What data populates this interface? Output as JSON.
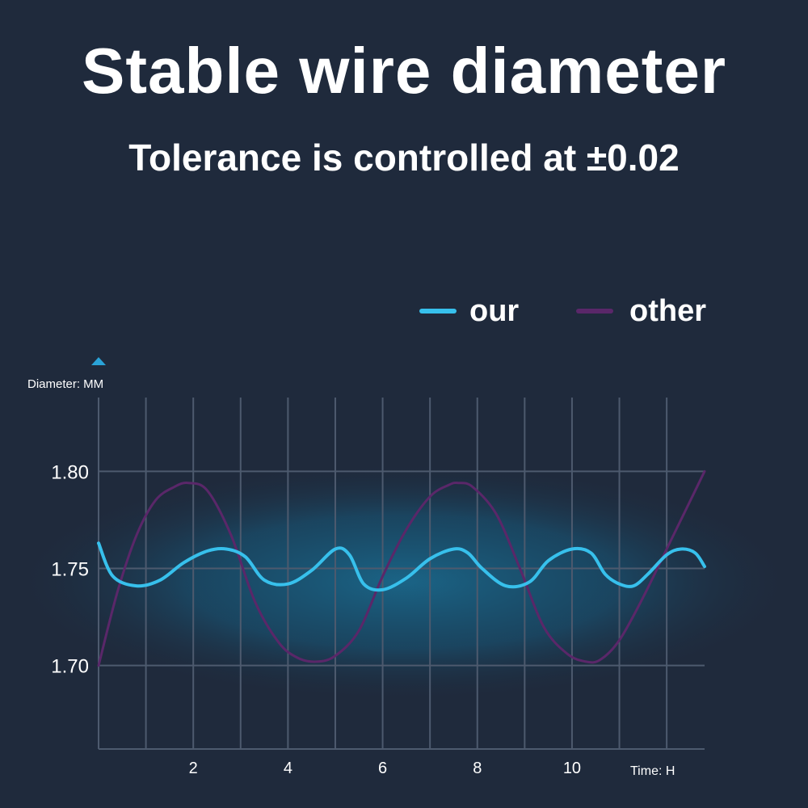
{
  "header": {
    "title": "Stable wire diameter",
    "subtitle": "Tolerance is controlled at ±0.02"
  },
  "colors": {
    "background": "#1f2a3c",
    "grid": "#4d5a6e",
    "our": "#37c0ec",
    "other": "#5a2769",
    "axis_marker": "#2aa3d8"
  },
  "chart_data": {
    "type": "line",
    "xlabel": "Time: H",
    "ylabel": "Diameter: MM",
    "xlim": [
      0,
      12.8
    ],
    "ylim": [
      1.657,
      1.838
    ],
    "x_ticks": [
      2,
      4,
      6,
      8,
      10
    ],
    "y_ticks": [
      1.7,
      1.75,
      1.8
    ],
    "y_tick_labels": [
      "1.70",
      "1.75",
      "1.80"
    ],
    "grid": true,
    "legend_position": "top-right",
    "series": [
      {
        "name": "our",
        "color": "#37c0ec",
        "x": [
          0,
          0.3,
          0.8,
          1.3,
          1.8,
          2.3,
          2.7,
          3.1,
          3.5,
          4.0,
          4.5,
          5.0,
          5.3,
          5.6,
          6.0,
          6.5,
          7.0,
          7.5,
          7.8,
          8.1,
          8.6,
          9.1,
          9.5,
          10.0,
          10.4,
          10.7,
          11.0,
          11.3,
          11.6,
          12.0,
          12.3,
          12.6,
          12.8
        ],
        "y": [
          1.763,
          1.746,
          1.741,
          1.744,
          1.753,
          1.759,
          1.76,
          1.756,
          1.744,
          1.742,
          1.749,
          1.76,
          1.757,
          1.742,
          1.739,
          1.745,
          1.755,
          1.76,
          1.758,
          1.75,
          1.741,
          1.743,
          1.754,
          1.76,
          1.758,
          1.747,
          1.742,
          1.741,
          1.747,
          1.757,
          1.76,
          1.758,
          1.751
        ]
      },
      {
        "name": "other",
        "color": "#5a2769",
        "x": [
          0,
          0.4,
          0.8,
          1.2,
          1.6,
          1.9,
          2.3,
          2.8,
          3.3,
          3.8,
          4.2,
          4.6,
          5.0,
          5.5,
          6.0,
          6.5,
          7.0,
          7.4,
          7.6,
          7.9,
          8.4,
          8.9,
          9.4,
          9.9,
          10.3,
          10.6,
          11.0,
          11.5,
          12.0,
          12.4,
          12.8
        ],
        "y": [
          1.7,
          1.738,
          1.767,
          1.785,
          1.792,
          1.794,
          1.79,
          1.767,
          1.733,
          1.712,
          1.704,
          1.702,
          1.705,
          1.718,
          1.746,
          1.77,
          1.787,
          1.793,
          1.794,
          1.792,
          1.778,
          1.75,
          1.72,
          1.706,
          1.702,
          1.703,
          1.713,
          1.735,
          1.76,
          1.78,
          1.8
        ]
      }
    ]
  }
}
